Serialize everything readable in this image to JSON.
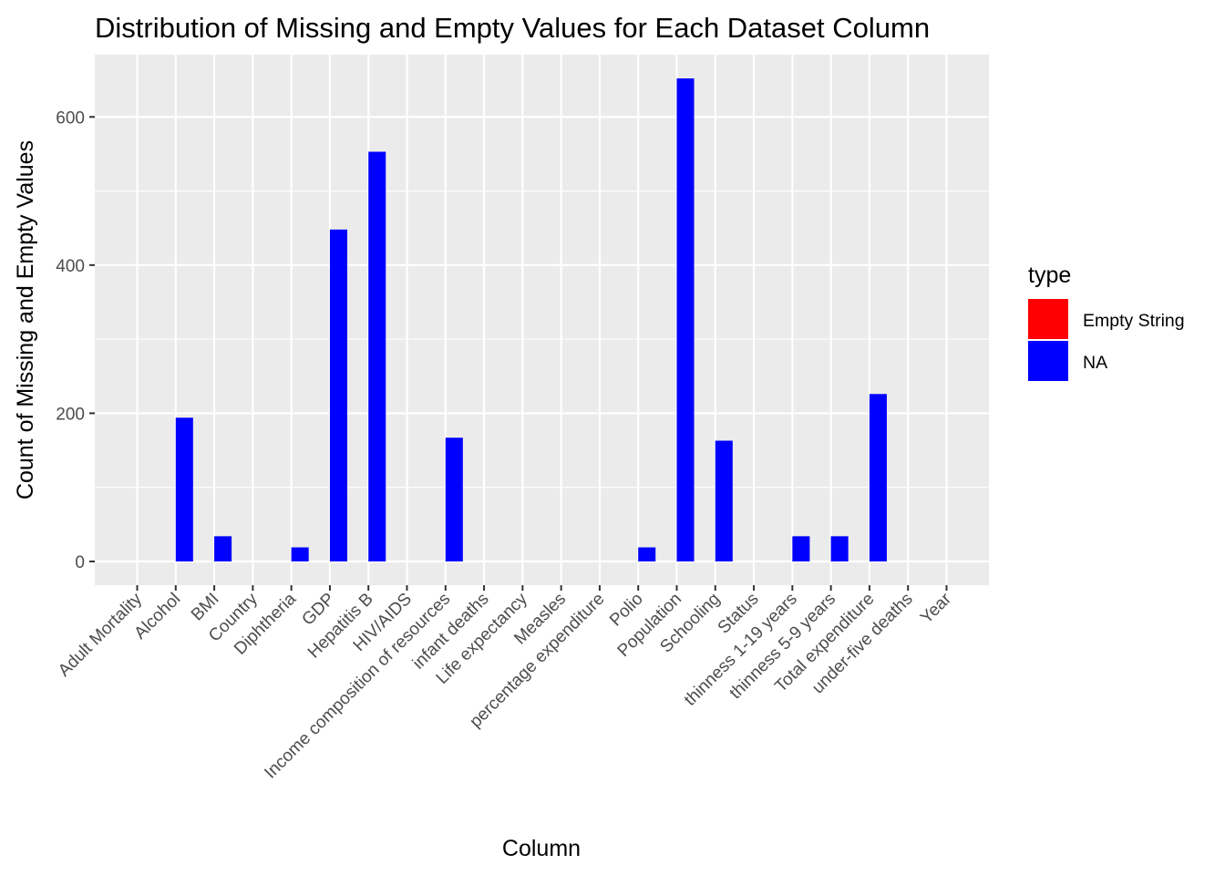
{
  "chart_data": {
    "type": "bar",
    "title": "Distribution of Missing and Empty Values for Each Dataset Column",
    "xlabel": "Column",
    "ylabel": "Count of Missing and Empty Values",
    "categories": [
      "Adult Mortality",
      "Alcohol",
      "BMI",
      "Country",
      "Diphtheria",
      "GDP",
      "Hepatitis B",
      "HIV/AIDS",
      "Income composition of resources",
      "infant deaths",
      "Life expectancy",
      "Measles",
      "percentage expenditure",
      "Polio",
      "Population",
      "Schooling",
      "Status",
      "thinness  1-19 years",
      "thinness 5-9 years",
      "Total expenditure",
      "under-five deaths",
      "Year"
    ],
    "series": [
      {
        "name": "Empty String",
        "color": "#FF0000",
        "values": [
          0,
          0,
          0,
          0,
          0,
          0,
          0,
          0,
          0,
          0,
          0,
          0,
          0,
          0,
          0,
          0,
          0,
          0,
          0,
          0,
          0,
          0
        ]
      },
      {
        "name": "NA",
        "color": "#0000FF",
        "values": [
          0,
          194,
          34,
          0,
          19,
          448,
          553,
          0,
          167,
          0,
          0,
          0,
          0,
          19,
          652,
          163,
          0,
          34,
          34,
          226,
          0,
          0
        ]
      }
    ],
    "yticks": [
      0,
      200,
      400,
      600
    ],
    "ylim": [
      -32,
      684
    ],
    "grid": true,
    "background": "#EBEBEB",
    "legend": {
      "title": "type",
      "position": "right",
      "items": [
        {
          "label": "Empty String",
          "color": "#FF0000"
        },
        {
          "label": "NA",
          "color": "#0000FF"
        }
      ]
    }
  }
}
